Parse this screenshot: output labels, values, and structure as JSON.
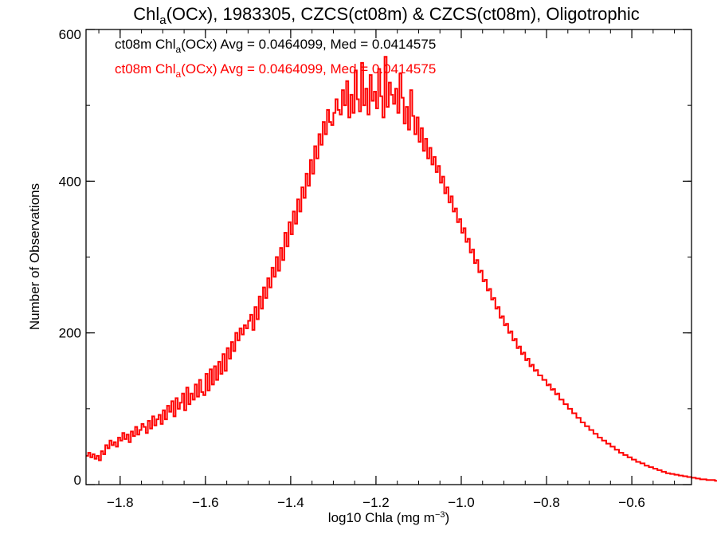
{
  "chart_data": {
    "type": "line",
    "step": true,
    "title": {
      "pre": "Chl",
      "sub": "a",
      "post": "(OCx), 1983305, CZCS(ct08m) & CZCS(ct08m), Oligotrophic"
    },
    "xlabel": {
      "pre": "log10 Chla (mg m",
      "sup": "−3",
      "post": ")"
    },
    "ylabel": "Number of Observations",
    "xlim": [
      -1.88,
      -0.46
    ],
    "ylim": [
      0,
      600
    ],
    "xticks": [
      -1.8,
      -1.6,
      -1.4,
      -1.2,
      -1.0,
      -0.8,
      -0.6
    ],
    "xtick_labels": [
      "−1.8",
      "−1.6",
      "−1.4",
      "−1.2",
      "−1.0",
      "−0.8",
      "−0.6"
    ],
    "xminor_step": 0.05,
    "yticks": [
      0,
      200,
      400,
      600
    ],
    "ytick_labels": [
      "0",
      "200",
      "400",
      "600"
    ],
    "yminor_step": 100,
    "grid": false,
    "bin_width": 0.005,
    "legend": [
      {
        "pre": "ct08m Chl",
        "sub": "a",
        "post": "(OCx) Avg = 0.0464099, Med = 0.0414575",
        "color": "#000000"
      },
      {
        "pre": "ct08m Chl",
        "sub": "a",
        "post": "(OCx) Avg = 0.0464099, Med = 0.0414575",
        "color": "#ff0000"
      }
    ],
    "series": [
      {
        "color": "#000000",
        "stroke_width": 2,
        "x_start": -1.88,
        "values": []
      },
      {
        "color": "#ff0000",
        "stroke_width": 2,
        "x_start": -1.88,
        "values": [
          38,
          42,
          36,
          40,
          34,
          38,
          32,
          44,
          40,
          52,
          48,
          58,
          52,
          56,
          50,
          62,
          58,
          68,
          60,
          66,
          56,
          70,
          64,
          76,
          66,
          72,
          80,
          76,
          68,
          84,
          74,
          90,
          78,
          86,
          92,
          80,
          98,
          86,
          104,
          96,
          110,
          90,
          114,
          100,
          108,
          120,
          98,
          128,
          106,
          120,
          112,
          132,
          116,
          138,
          122,
          118,
          146,
          124,
          152,
          132,
          156,
          138,
          162,
          146,
          172,
          150,
          180,
          166,
          188,
          176,
          200,
          190,
          206,
          198,
          210,
          206,
          216,
          224,
          204,
          234,
          218,
          248,
          232,
          260,
          246,
          272,
          260,
          286,
          274,
          300,
          282,
          312,
          296,
          332,
          314,
          346,
          330,
          360,
          344,
          376,
          360,
          392,
          378,
          410,
          394,
          428,
          410,
          446,
          430,
          462,
          448,
          478,
          462,
          494,
          478,
          474,
          490,
          508,
          494,
          488,
          520,
          500,
          532,
          484,
          514,
          490,
          546,
          508,
          492,
          556,
          500,
          522,
          488,
          540,
          506,
          518,
          496,
          548,
          512,
          484,
          564,
          498,
          530,
          514,
          502,
          522,
          490,
          542,
          510,
          476,
          498,
          468,
          520,
          486,
          462,
          484,
          452,
          470,
          440,
          456,
          430,
          444,
          422,
          432,
          412,
          420,
          398,
          406,
          384,
          392,
          372,
          380,
          360,
          364,
          346,
          350,
          332,
          338,
          320,
          324,
          306,
          310,
          292,
          296,
          280,
          282,
          268,
          270,
          256,
          258,
          244,
          246,
          232,
          234,
          220,
          222,
          210,
          212,
          200,
          202,
          190,
          192,
          180,
          182,
          172,
          174,
          164,
          166,
          156,
          158,
          150,
          151,
          144,
          144,
          138,
          138,
          131,
          132,
          125,
          126,
          119,
          120,
          112,
          112,
          106,
          106,
          100,
          100,
          94,
          94,
          88,
          88,
          82,
          82,
          77,
          77,
          72,
          72,
          67,
          67,
          62,
          62,
          58,
          58,
          54,
          54,
          50,
          50,
          46,
          46,
          42,
          42,
          39,
          39,
          36,
          36,
          33,
          33,
          30,
          30,
          28,
          28,
          25,
          25,
          23,
          23,
          21,
          21,
          19,
          19,
          17,
          17,
          15,
          15,
          14,
          14,
          13,
          13,
          12,
          12,
          11,
          11,
          10,
          10,
          9,
          9,
          8,
          8,
          7,
          7,
          7,
          6,
          6,
          6,
          6,
          5,
          5,
          5,
          5,
          4,
          4,
          4,
          4,
          4,
          4,
          3,
          3,
          3,
          3,
          3,
          3,
          3,
          3,
          2,
          2,
          2,
          2,
          2,
          2,
          2,
          2,
          2,
          2,
          2,
          2,
          1,
          1,
          1,
          1,
          1,
          1,
          1,
          1,
          1,
          1,
          1,
          1,
          1,
          1,
          1,
          1,
          1,
          1,
          1,
          1,
          0,
          0,
          0,
          0,
          0,
          0,
          0,
          0,
          0,
          0,
          0,
          0,
          0,
          0,
          0,
          0,
          0,
          0,
          0,
          0
        ]
      }
    ]
  }
}
